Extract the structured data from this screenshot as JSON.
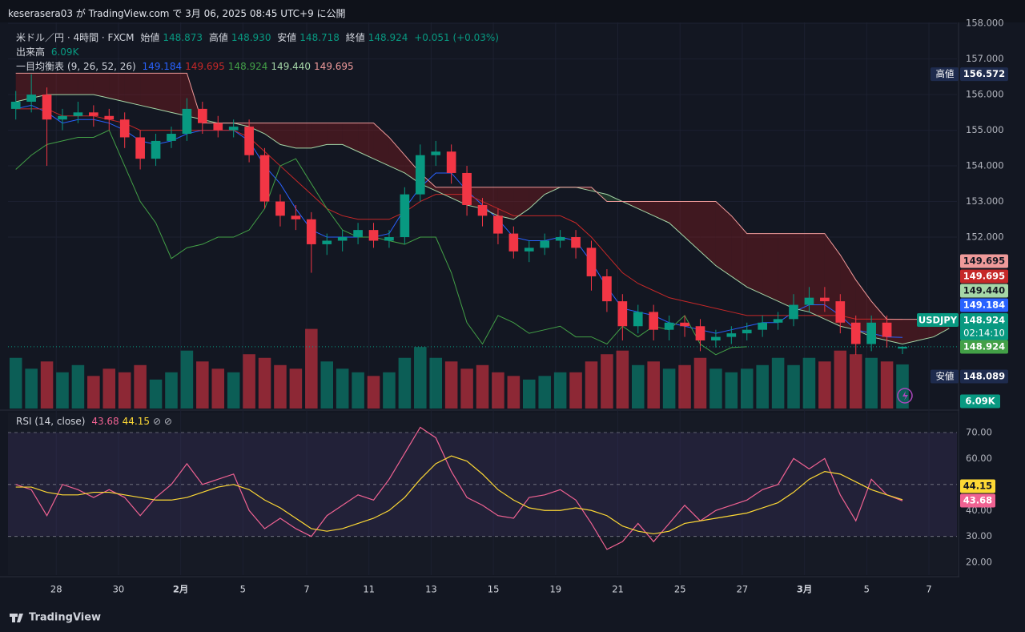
{
  "header": {
    "publish": "keserasera03 が TradingView.com で 3月 06, 2025 08:45 UTC+9 に公開"
  },
  "footer": {
    "brand": "TradingView"
  },
  "chart_data": {
    "type": "candlestick",
    "symbol": "米ドル／円 · 4時間 · FXCM",
    "ticker": "USDJPY",
    "countdown": "02:14:10",
    "ohlc_names": {
      "open": "始値",
      "high": "高値",
      "low": "安値",
      "close": "終値"
    },
    "change": "+0.051 (+0.03%)",
    "xlim": [
      -0.5,
      60.5
    ],
    "xticks": [
      {
        "value": 2.6,
        "label": "28"
      },
      {
        "value": 6.6,
        "label": "30"
      },
      {
        "value": 10.6,
        "label": "2月"
      },
      {
        "value": 14.6,
        "label": "5"
      },
      {
        "value": 18.7,
        "label": "7"
      },
      {
        "value": 22.7,
        "label": "11"
      },
      {
        "value": 26.7,
        "label": "13"
      },
      {
        "value": 30.7,
        "label": "15"
      },
      {
        "value": 34.7,
        "label": "19"
      },
      {
        "value": 38.7,
        "label": "21"
      },
      {
        "value": 42.7,
        "label": "25"
      },
      {
        "value": 46.7,
        "label": "27"
      },
      {
        "value": 50.7,
        "label": "3月"
      },
      {
        "value": 54.7,
        "label": "5"
      },
      {
        "value": 58.7,
        "label": "7"
      }
    ],
    "ylim": [
      147.19,
      158.16
    ],
    "yticks": [
      {
        "value": 152,
        "label": "152.000"
      },
      {
        "value": 153,
        "label": "153.000"
      },
      {
        "value": 154,
        "label": "154.000"
      },
      {
        "value": 155,
        "label": "155.000"
      },
      {
        "value": 156,
        "label": "156.000"
      },
      {
        "value": 157,
        "label": "157.000"
      },
      {
        "value": 158,
        "label": "158.000"
      }
    ],
    "grid": true,
    "up_color": "#089981",
    "down_color": "#f23645",
    "candles": {
      "open": [
        155.6,
        155.8,
        156.0,
        155.3,
        155.4,
        155.5,
        155.4,
        155.3,
        154.8,
        154.2,
        154.7,
        154.9,
        155.6,
        155.2,
        155.0,
        155.1,
        154.3,
        153.0,
        152.6,
        152.5,
        151.8,
        151.9,
        152.0,
        152.2,
        151.9,
        152.0,
        153.2,
        154.3,
        154.4,
        153.8,
        152.9,
        152.6,
        152.1,
        151.6,
        151.7,
        151.9,
        152.0,
        151.7,
        150.9,
        150.2,
        149.5,
        149.9,
        149.4,
        149.6,
        149.5,
        149.1,
        149.2,
        149.3,
        149.4,
        149.6,
        149.7,
        150.1,
        150.3,
        150.2,
        149.6,
        149.0,
        149.6,
        148.873
      ],
      "high": [
        156.1,
        156.572,
        156.2,
        155.6,
        155.8,
        155.7,
        155.6,
        155.5,
        155.0,
        154.9,
        155.1,
        155.9,
        155.8,
        155.4,
        155.3,
        155.3,
        154.5,
        153.2,
        152.9,
        152.7,
        152.1,
        152.2,
        152.4,
        152.4,
        152.2,
        153.4,
        154.6,
        154.7,
        154.6,
        154.0,
        153.1,
        152.8,
        152.3,
        151.9,
        152.1,
        152.2,
        152.2,
        151.9,
        151.1,
        150.4,
        150.1,
        150.1,
        149.8,
        149.8,
        149.7,
        149.4,
        149.5,
        149.6,
        149.8,
        149.9,
        150.4,
        150.6,
        150.6,
        150.4,
        149.8,
        149.8,
        149.8,
        148.93
      ],
      "low": [
        155.3,
        155.5,
        154.0,
        155.0,
        155.2,
        155.1,
        155.0,
        154.5,
        153.9,
        154.0,
        154.5,
        154.7,
        154.9,
        154.8,
        154.8,
        154.1,
        152.8,
        152.3,
        152.2,
        151.0,
        151.5,
        151.6,
        151.8,
        151.7,
        151.7,
        151.8,
        153.0,
        154.0,
        153.5,
        152.6,
        152.3,
        151.8,
        151.4,
        151.3,
        151.5,
        151.7,
        151.4,
        150.5,
        149.9,
        149.1,
        149.3,
        149.1,
        149.1,
        149.2,
        148.8,
        148.9,
        149.0,
        149.1,
        149.2,
        149.4,
        149.5,
        149.9,
        149.9,
        149.3,
        148.7,
        148.8,
        148.9,
        148.718
      ],
      "close": [
        155.8,
        156.0,
        155.3,
        155.4,
        155.5,
        155.4,
        155.3,
        154.8,
        154.2,
        154.7,
        154.9,
        155.6,
        155.2,
        155.0,
        155.1,
        154.3,
        153.0,
        152.6,
        152.5,
        151.8,
        151.9,
        152.0,
        152.2,
        151.9,
        152.0,
        153.2,
        154.3,
        154.4,
        153.8,
        152.9,
        152.6,
        152.1,
        151.6,
        151.7,
        151.9,
        152.0,
        151.7,
        150.9,
        150.2,
        149.5,
        149.9,
        149.4,
        149.6,
        149.5,
        149.1,
        149.2,
        149.3,
        149.4,
        149.6,
        149.7,
        150.1,
        150.3,
        150.2,
        149.6,
        149.0,
        149.6,
        149.2,
        148.924
      ],
      "last_labels": {
        "open": "148.873",
        "high": "148.930",
        "low": "148.718",
        "close": "148.924"
      }
    },
    "high_marker": {
      "label": "高値",
      "value": 156.572
    },
    "low_marker": {
      "label": "安値",
      "value": 148.089
    },
    "volume": {
      "title": "出来高",
      "last_label": "6.09K",
      "lim": [
        0,
        54000
      ],
      "values": [
        7000,
        5500,
        6500,
        5000,
        6000,
        4500,
        5500,
        5000,
        6000,
        4000,
        5000,
        8000,
        6500,
        5500,
        5000,
        7500,
        7000,
        6000,
        5500,
        11000,
        6500,
        5500,
        5000,
        4500,
        5000,
        7000,
        8500,
        7000,
        6500,
        5500,
        6000,
        5000,
        4500,
        4000,
        4500,
        5000,
        5000,
        6500,
        7500,
        8000,
        6000,
        6500,
        5500,
        6000,
        7000,
        5500,
        5000,
        5500,
        6000,
        7000,
        6000,
        7000,
        6500,
        8000,
        7500,
        7000,
        6500,
        6090
      ]
    },
    "ichimoku": {
      "name": "一目均衡表",
      "params": "(9, 26, 52, 26)",
      "lines": [
        {
          "color": "#2962ff",
          "values": [
            155.6,
            155.7,
            155.5,
            155.2,
            155.3,
            155.3,
            155.2,
            155.0,
            154.7,
            154.6,
            154.7,
            154.9,
            155.0,
            155.0,
            155.0,
            154.7,
            154.0,
            153.5,
            152.8,
            152.2,
            152.0,
            152.0,
            152.0,
            152.0,
            152.1,
            152.8,
            153.4,
            153.8,
            153.8,
            153.3,
            152.9,
            152.5,
            152.0,
            151.9,
            151.9,
            152.0,
            151.9,
            151.3,
            150.6,
            150.0,
            149.9,
            149.8,
            149.6,
            149.5,
            149.4,
            149.3,
            149.4,
            149.5,
            149.6,
            149.6,
            149.9,
            150.1,
            150.1,
            149.8,
            149.4,
            149.3,
            149.2,
            149.184
          ]
        },
        {
          "color": "#c62828",
          "values": [
            155.6,
            155.6,
            155.6,
            155.4,
            155.4,
            155.4,
            155.3,
            155.2,
            155.0,
            155.0,
            155.0,
            155.0,
            155.0,
            155.0,
            155.0,
            154.8,
            154.4,
            154.0,
            153.6,
            153.2,
            152.8,
            152.6,
            152.5,
            152.5,
            152.5,
            152.7,
            153.0,
            153.2,
            153.2,
            153.2,
            153.0,
            152.8,
            152.6,
            152.6,
            152.6,
            152.6,
            152.4,
            152.0,
            151.5,
            151.0,
            150.7,
            150.5,
            150.3,
            150.2,
            150.1,
            150.0,
            149.9,
            149.8,
            149.8,
            149.8,
            149.8,
            149.8,
            149.8,
            149.8,
            149.7,
            149.7,
            149.7,
            149.695
          ]
        },
        {
          "color": "#43a047",
          "values": [
            153.9,
            154.3,
            154.6,
            154.7,
            154.8,
            154.8,
            155.0,
            154.0,
            153.0,
            152.4,
            151.4,
            151.7,
            151.8,
            152.0,
            152.0,
            152.2,
            152.8,
            154.0,
            154.2,
            153.5,
            152.8,
            152.2,
            152.0,
            152.0,
            151.9,
            151.8,
            152.0,
            152.0,
            151.0,
            149.6,
            149.0,
            149.8,
            149.6,
            149.3,
            149.4,
            149.5,
            149.2,
            149.2,
            149.0,
            149.5,
            149.2,
            149.5,
            149.4,
            149.8,
            149.0,
            148.7,
            148.9,
            148.924
          ]
        },
        {
          "color": "#a5d6a7",
          "last_label": "149.440",
          "values": [
            155.8,
            155.9,
            156.0,
            156.0,
            156.0,
            156.0,
            155.9,
            155.8,
            155.7,
            155.6,
            155.5,
            155.4,
            155.3,
            155.2,
            155.2,
            155.1,
            154.9,
            154.6,
            154.5,
            154.5,
            154.6,
            154.6,
            154.4,
            154.2,
            154.0,
            153.8,
            153.5,
            153.3,
            153.1,
            152.9,
            152.8,
            152.6,
            152.5,
            152.8,
            153.2,
            153.4,
            153.4,
            153.3,
            153.2,
            153.0,
            152.8,
            152.6,
            152.4,
            152.0,
            151.6,
            151.2,
            150.9,
            150.6,
            150.4,
            150.2,
            150.0,
            149.9,
            149.7,
            149.5,
            149.4,
            149.2,
            149.1,
            149.0,
            149.1,
            149.2,
            149.44
          ]
        },
        {
          "color": "#ef9a9a",
          "values": [
            156.6,
            156.6,
            156.6,
            156.6,
            156.6,
            156.6,
            156.6,
            156.6,
            156.6,
            156.6,
            156.6,
            156.6,
            155.2,
            155.2,
            155.2,
            155.2,
            155.2,
            155.2,
            155.2,
            155.2,
            155.2,
            155.2,
            155.2,
            155.2,
            154.8,
            154.3,
            153.8,
            153.4,
            153.4,
            153.4,
            153.4,
            153.4,
            153.4,
            153.4,
            153.4,
            153.4,
            153.4,
            153.4,
            153.0,
            153.0,
            153.0,
            153.0,
            153.0,
            153.0,
            153.0,
            153.0,
            152.6,
            152.1,
            152.1,
            152.1,
            152.1,
            152.1,
            152.1,
            151.5,
            150.8,
            150.2,
            149.695,
            149.695,
            149.695,
            149.695,
            149.695
          ]
        }
      ],
      "cloud_colors": {
        "bear": "rgba(183,28,28,0.28)",
        "bull": "rgba(67,160,71,0.22)"
      }
    },
    "rsi": {
      "title": "RSI (14, close)",
      "ylim": [
        15.1,
        77.7
      ],
      "yticks": [
        {
          "value": 20,
          "label": "20.00"
        },
        {
          "value": 30,
          "label": "30.00"
        },
        {
          "value": 40,
          "label": "40.00"
        },
        {
          "value": 50,
          "label": "50.00"
        },
        {
          "value": 60,
          "label": "60.00"
        },
        {
          "value": 70,
          "label": "70.00"
        }
      ],
      "levels": [
        70,
        50,
        30
      ],
      "series": [
        {
          "color": "#f06292",
          "values": [
            50,
            48,
            38,
            50,
            48,
            45,
            48,
            45,
            38,
            45,
            50,
            58,
            50,
            52,
            54,
            40,
            33,
            37,
            33,
            30,
            38,
            42,
            46,
            44,
            52,
            62,
            72,
            68,
            55,
            45,
            42,
            38,
            37,
            45,
            46,
            48,
            44,
            35,
            25,
            28,
            35,
            28,
            35,
            42,
            36,
            40,
            42,
            44,
            48,
            50,
            60,
            56,
            60,
            46,
            36,
            52,
            46,
            43.68
          ]
        },
        {
          "color": "#fdd835",
          "values": [
            49,
            49,
            47,
            46,
            46,
            47,
            47,
            46,
            45,
            44,
            44,
            45,
            47,
            49,
            50,
            48,
            44,
            41,
            37,
            33,
            32,
            33,
            35,
            37,
            40,
            45,
            52,
            58,
            61,
            59,
            54,
            48,
            44,
            41,
            40,
            40,
            41,
            40,
            38,
            34,
            32,
            31,
            32,
            35,
            36,
            37,
            38,
            39,
            41,
            43,
            47,
            52,
            55,
            54,
            51,
            48,
            46,
            44.15
          ]
        }
      ]
    }
  }
}
